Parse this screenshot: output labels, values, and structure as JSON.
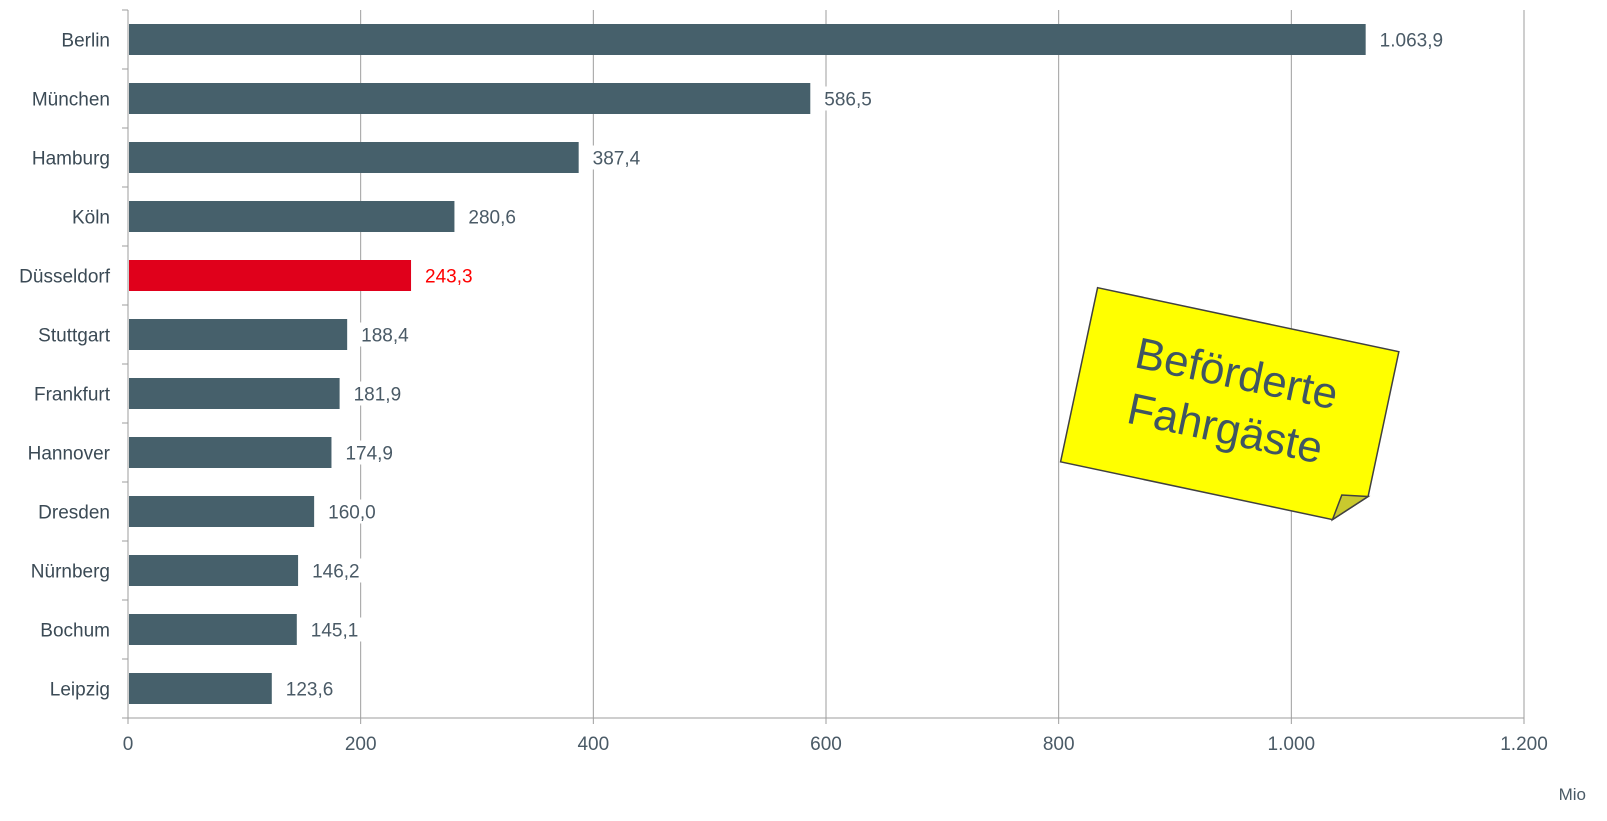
{
  "chart_data": {
    "type": "bar",
    "orientation": "horizontal",
    "categories": [
      "Berlin",
      "München",
      "Hamburg",
      "Köln",
      "Düsseldorf",
      "Stuttgart",
      "Frankfurt",
      "Hannover",
      "Dresden",
      "Nürnberg",
      "Bochum",
      "Leipzig"
    ],
    "values": [
      1063.9,
      586.5,
      387.4,
      280.6,
      243.3,
      188.4,
      181.9,
      174.9,
      160.0,
      146.2,
      145.1,
      123.6
    ],
    "value_labels": [
      "1.063,9",
      "586,5",
      "387,4",
      "280,6",
      "243,3",
      "188,4",
      "181,9",
      "174,9",
      "160,0",
      "146,2",
      "145,1",
      "123,6"
    ],
    "highlight_index": 4,
    "xlim": [
      0,
      1200
    ],
    "x_ticks": [
      0,
      200,
      400,
      600,
      800,
      1000,
      1200
    ],
    "x_tick_labels": [
      "0",
      "200",
      "400",
      "600",
      "800",
      "1.000",
      "1.200"
    ],
    "unit_label": "Mio",
    "grid": "vertical",
    "legend": "none",
    "annotation": {
      "lines": [
        "Beförderte",
        "Fahrgäste"
      ],
      "style": "yellow sticky note, top-right"
    },
    "colors": {
      "bar": "#46606b",
      "highlight": "#e0001b",
      "highlight_text": "#ff0000",
      "grid": "#9e9e9e",
      "note": "#ffff00"
    }
  }
}
